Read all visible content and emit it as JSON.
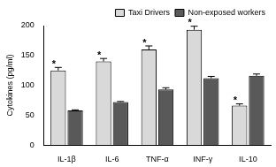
{
  "chart_data": {
    "type": "bar",
    "y_label": "Cytokines (pg/ml)",
    "categories": [
      "IL-1β",
      "IL-6",
      "TNF-α",
      "INF-γ",
      "IL-10"
    ],
    "series": [
      {
        "name": "Taxi Drivers",
        "color": "#d9d9d9",
        "values": [
          125,
          140,
          160,
          193,
          66
        ],
        "errors": [
          5,
          5,
          6,
          6,
          3
        ],
        "annotations": [
          "*",
          "*",
          "*",
          "*",
          "*"
        ]
      },
      {
        "name": "Non-exposed workers",
        "color": "#595959",
        "values": [
          58,
          72,
          93,
          112,
          116
        ],
        "errors": [
          1,
          1,
          3,
          3,
          3
        ]
      }
    ],
    "ylim": [
      0,
      200
    ],
    "yticks": [
      0,
      50,
      100,
      150,
      200
    ],
    "grid": false,
    "legend": "top-right"
  }
}
